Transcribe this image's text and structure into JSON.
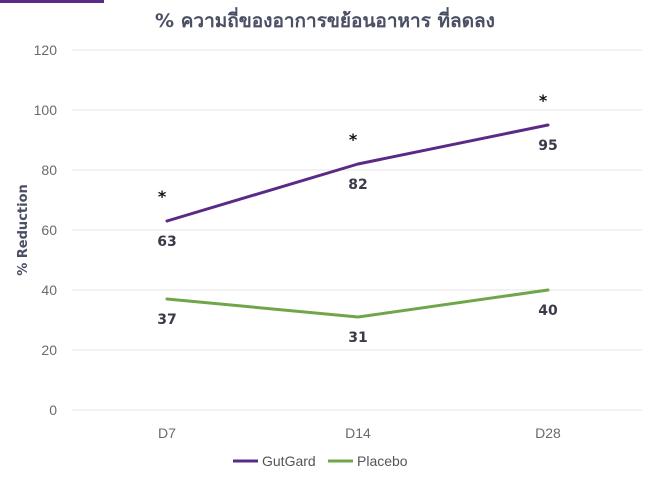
{
  "title": "% ความถี่ของอาการขย้อนอาหาร ที่ลดลง",
  "colors": {
    "accent": "#5b2a86",
    "gutgard": "#5b2a86",
    "placebo": "#6fa64a"
  },
  "chart_data": {
    "type": "line",
    "title": "% ความถี่ของอาการขย้อนอาหาร ที่ลดลง",
    "xlabel": "",
    "ylabel": "% Reduction",
    "categories": [
      "D7",
      "D14",
      "D28"
    ],
    "ylim": [
      0,
      120
    ],
    "yticks": [
      0,
      20,
      40,
      60,
      80,
      100,
      120
    ],
    "grid": true,
    "legend_position": "bottom",
    "series": [
      {
        "name": "GutGard",
        "values": [
          63,
          82,
          95
        ],
        "labels": [
          "63",
          "82",
          "95"
        ],
        "color": "#5b2a86",
        "significance": [
          "*",
          "*",
          "*"
        ]
      },
      {
        "name": "Placebo",
        "values": [
          37,
          31,
          40
        ],
        "labels": [
          "37",
          "31",
          "40"
        ],
        "color": "#6fa64a"
      }
    ]
  }
}
